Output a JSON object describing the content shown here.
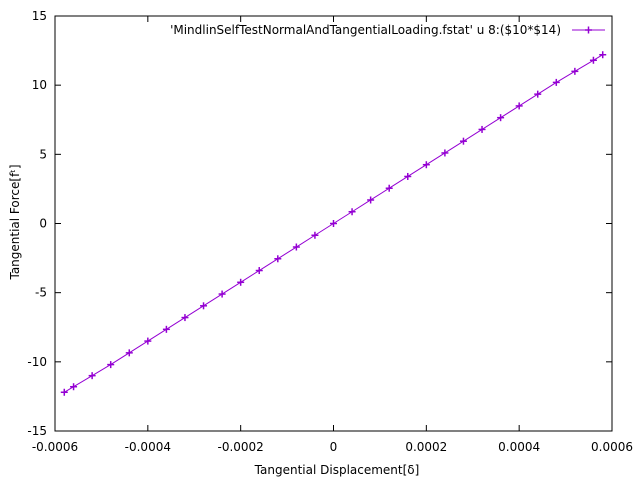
{
  "chart_data": {
    "type": "line",
    "title": "",
    "xlabel": "Tangential Displacement[δ]",
    "ylabel": "Tangential Force[fᵗ]",
    "xlim": [
      -0.0006,
      0.0006
    ],
    "ylim": [
      -15,
      15
    ],
    "xticks": [
      -0.0006,
      -0.0004,
      -0.0002,
      0,
      0.0002,
      0.0004,
      0.0006
    ],
    "xtick_labels": [
      "-0.0006",
      "-0.0004",
      "-0.0002",
      "0",
      "0.0002",
      "0.0004",
      "0.0006"
    ],
    "yticks": [
      -15,
      -10,
      -5,
      0,
      5,
      10,
      15
    ],
    "ytick_labels": [
      "-15",
      "-10",
      "-5",
      "0",
      "5",
      "10",
      "15"
    ],
    "grid": false,
    "legend_position": "top-right",
    "series": [
      {
        "name": "'MindlinSelfTestNormalAndTangentialLoading.fstat' u 8:($10*$14)",
        "color": "#9400d3",
        "marker": "plus",
        "x": [
          -0.00058,
          -0.00056,
          -0.00052,
          -0.00048,
          -0.00044,
          -0.0004,
          -0.00036,
          -0.00032,
          -0.00028,
          -0.00024,
          -0.0002,
          -0.00016,
          -0.00012,
          -8e-05,
          -4e-05,
          0,
          4e-05,
          8e-05,
          0.00012,
          0.00016,
          0.0002,
          0.00024,
          0.00028,
          0.00032,
          0.00036,
          0.0004,
          0.00044,
          0.00048,
          0.00052,
          0.00056,
          0.00058
        ],
        "y": [
          -12.2,
          -11.8,
          -11.0,
          -10.2,
          -9.35,
          -8.5,
          -7.65,
          -6.8,
          -5.95,
          -5.1,
          -4.25,
          -3.4,
          -2.55,
          -1.7,
          -0.85,
          0,
          0.85,
          1.7,
          2.55,
          3.4,
          4.25,
          5.1,
          5.95,
          6.8,
          7.65,
          8.5,
          9.35,
          10.2,
          11.0,
          11.8,
          12.2
        ]
      }
    ]
  }
}
